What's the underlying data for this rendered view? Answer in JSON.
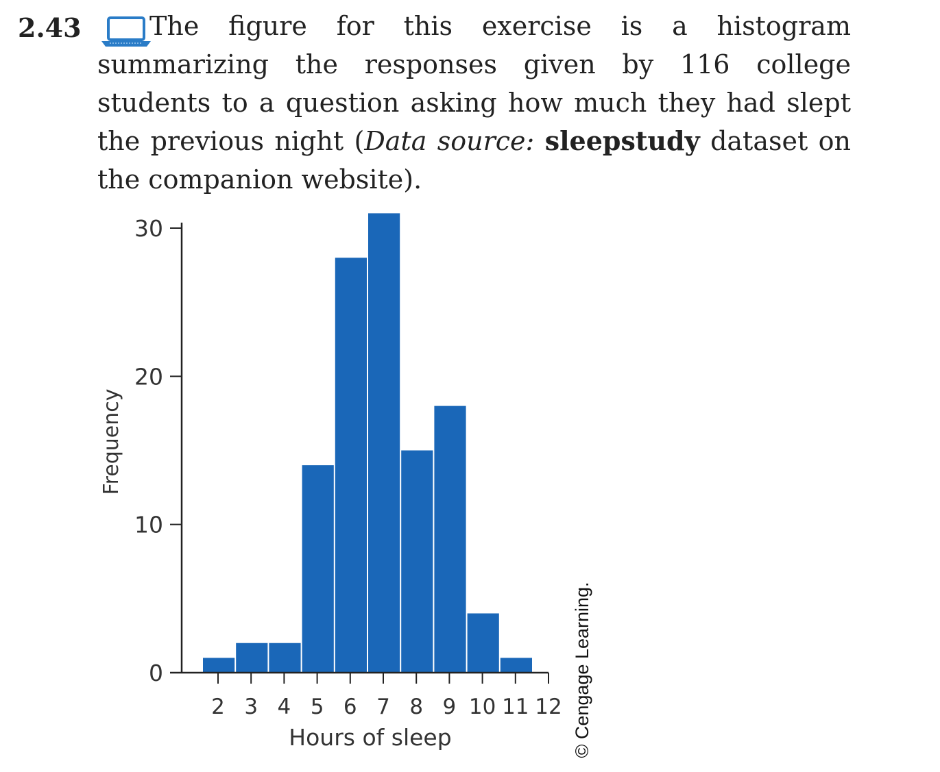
{
  "exercise": {
    "number": "2.43",
    "text_before": "The figure for this exercise is a histogram summarizing the responses given by 116 college students to a question asking how much they had slept the previous night (",
    "source_label": "Data source:",
    "dataset": "sleepstudy",
    "text_after": "dataset on the companion website).",
    "icon": "laptop-icon"
  },
  "chart_data": {
    "type": "bar",
    "xlabel": "Hours of sleep",
    "ylabel": "Frequency",
    "bin_edges": [
      2,
      3,
      4,
      5,
      6,
      7,
      8,
      9,
      10,
      11,
      12
    ],
    "tick_labels": [
      "2",
      "3",
      "4",
      "5",
      "6",
      "7",
      "8",
      "9",
      "10",
      "11",
      "12"
    ],
    "values": [
      1,
      2,
      2,
      14,
      28,
      31,
      15,
      18,
      4,
      1
    ],
    "ylim": [
      0,
      30
    ],
    "yticks": [
      0,
      10,
      20,
      30
    ],
    "bar_color": "#1a67b8",
    "grid": false
  },
  "credit": "© Cengage Learning."
}
